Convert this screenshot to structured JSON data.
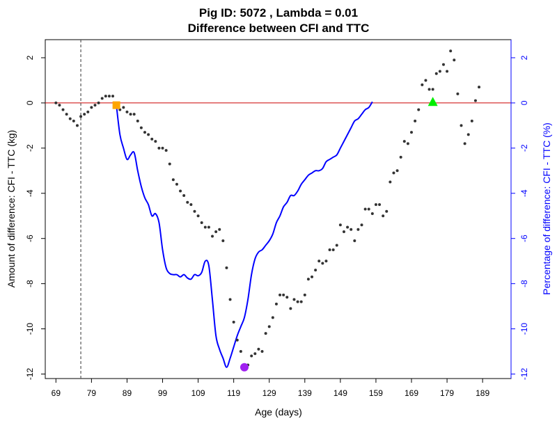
{
  "chart_data": {
    "type": "scatter",
    "title": "Pig ID: 5072 , Lambda = 0.01",
    "subtitle": "Difference between CFI and TTC",
    "xlabel": "Age (days)",
    "ylabel_left": "Amount of difference: CFI - TTC (kg)",
    "ylabel_right": "Percentage of difference: CFI - TTC (%)",
    "xlim": [
      66,
      197
    ],
    "ylim": [
      -12.2,
      2.8
    ],
    "x_ticks": [
      69,
      79,
      89,
      99,
      109,
      119,
      129,
      139,
      149,
      159,
      169,
      179,
      189
    ],
    "y_ticks_left": [
      -12,
      -10,
      -8,
      -6,
      -4,
      -2,
      0,
      2
    ],
    "y_ticks_right": [
      -12,
      -10,
      -8,
      -6,
      -4,
      -2,
      0,
      2
    ],
    "colors": {
      "points": "#333333",
      "line": "#0000ff",
      "zero_line": "#cc0000",
      "vline": "#555555",
      "square_marker": "#ffa500",
      "circle_marker": "#a020f0",
      "triangle_marker": "#00ee00",
      "right_axis": "#0000ff"
    },
    "vline_x": 76,
    "series": [
      {
        "type": "points",
        "values": [
          [
            69,
            0
          ],
          [
            70,
            -0.1
          ],
          [
            71,
            -0.3
          ],
          [
            72,
            -0.5
          ],
          [
            73,
            -0.7
          ],
          [
            74,
            -0.8
          ],
          [
            75,
            -1.0
          ],
          [
            76,
            -0.6
          ],
          [
            77,
            -0.5
          ],
          [
            78,
            -0.4
          ],
          [
            79,
            -0.2
          ],
          [
            80,
            -0.1
          ],
          [
            81,
            0.0
          ],
          [
            82,
            0.2
          ],
          [
            83,
            0.3
          ],
          [
            84,
            0.3
          ],
          [
            85,
            0.3
          ],
          [
            86,
            -0.1
          ],
          [
            87,
            -0.3
          ],
          [
            88,
            -0.2
          ],
          [
            89,
            -0.4
          ],
          [
            90,
            -0.5
          ],
          [
            91,
            -0.5
          ],
          [
            92,
            -0.8
          ],
          [
            93,
            -1.1
          ],
          [
            94,
            -1.3
          ],
          [
            95,
            -1.4
          ],
          [
            96,
            -1.6
          ],
          [
            97,
            -1.7
          ],
          [
            98,
            -2.0
          ],
          [
            99,
            -2.0
          ],
          [
            100,
            -2.1
          ],
          [
            101,
            -2.7
          ],
          [
            102,
            -3.4
          ],
          [
            103,
            -3.6
          ],
          [
            104,
            -3.9
          ],
          [
            105,
            -4.1
          ],
          [
            106,
            -4.4
          ],
          [
            107,
            -4.5
          ],
          [
            108,
            -4.8
          ],
          [
            109,
            -5.0
          ],
          [
            110,
            -5.3
          ],
          [
            111,
            -5.5
          ],
          [
            112,
            -5.5
          ],
          [
            113,
            -5.9
          ],
          [
            114,
            -5.7
          ],
          [
            115,
            -5.6
          ],
          [
            116,
            -6.1
          ],
          [
            117,
            -7.3
          ],
          [
            118,
            -8.7
          ],
          [
            119,
            -9.7
          ],
          [
            120,
            -10.5
          ],
          [
            121,
            -11.0
          ],
          [
            122,
            -11.6
          ],
          [
            123,
            -11.6
          ],
          [
            124,
            -11.2
          ],
          [
            125,
            -11.1
          ],
          [
            126,
            -10.9
          ],
          [
            127,
            -11.0
          ],
          [
            128,
            -10.2
          ],
          [
            129,
            -9.9
          ],
          [
            130,
            -9.5
          ],
          [
            131,
            -8.9
          ],
          [
            132,
            -8.5
          ],
          [
            133,
            -8.5
          ],
          [
            134,
            -8.6
          ],
          [
            135,
            -9.1
          ],
          [
            136,
            -8.7
          ],
          [
            137,
            -8.8
          ],
          [
            138,
            -8.8
          ],
          [
            139,
            -8.5
          ],
          [
            140,
            -7.8
          ],
          [
            141,
            -7.7
          ],
          [
            142,
            -7.4
          ],
          [
            143,
            -7.0
          ],
          [
            144,
            -7.1
          ],
          [
            145,
            -7.0
          ],
          [
            146,
            -6.5
          ],
          [
            147,
            -6.5
          ],
          [
            148,
            -6.3
          ],
          [
            149,
            -5.4
          ],
          [
            150,
            -5.7
          ],
          [
            151,
            -5.5
          ],
          [
            152,
            -5.6
          ],
          [
            153,
            -6.1
          ],
          [
            154,
            -5.6
          ],
          [
            155,
            -5.4
          ],
          [
            156,
            -4.7
          ],
          [
            157,
            -4.7
          ],
          [
            158,
            -4.9
          ],
          [
            159,
            -4.5
          ],
          [
            160,
            -4.5
          ],
          [
            161,
            -5.0
          ],
          [
            162,
            -4.8
          ],
          [
            163,
            -3.5
          ],
          [
            164,
            -3.1
          ],
          [
            165,
            -3.0
          ],
          [
            166,
            -2.4
          ],
          [
            167,
            -1.7
          ],
          [
            168,
            -1.8
          ],
          [
            169,
            -1.3
          ],
          [
            170,
            -0.8
          ],
          [
            171,
            -0.3
          ],
          [
            172,
            0.8
          ],
          [
            173,
            1.0
          ],
          [
            174,
            0.6
          ],
          [
            175,
            0.6
          ],
          [
            176,
            1.3
          ],
          [
            177,
            1.4
          ],
          [
            178,
            1.7
          ],
          [
            179,
            1.4
          ],
          [
            180,
            2.3
          ],
          [
            181,
            1.9
          ],
          [
            182,
            0.4
          ],
          [
            183,
            -1.0
          ],
          [
            184,
            -1.8
          ],
          [
            185,
            -1.4
          ],
          [
            186,
            -0.8
          ],
          [
            187,
            0.1
          ],
          [
            188,
            0.7
          ]
        ]
      },
      {
        "type": "line",
        "values": [
          [
            86,
            -0.1
          ],
          [
            87,
            -1.4
          ],
          [
            88,
            -2.0
          ],
          [
            89,
            -2.5
          ],
          [
            90,
            -2.3
          ],
          [
            91,
            -2.2
          ],
          [
            92,
            -3.0
          ],
          [
            93,
            -3.7
          ],
          [
            94,
            -4.2
          ],
          [
            95,
            -4.5
          ],
          [
            96,
            -5.0
          ],
          [
            97,
            -4.9
          ],
          [
            98,
            -5.3
          ],
          [
            99,
            -6.5
          ],
          [
            100,
            -7.3
          ],
          [
            101,
            -7.55
          ],
          [
            102,
            -7.6
          ],
          [
            103,
            -7.6
          ],
          [
            104,
            -7.7
          ],
          [
            105,
            -7.6
          ],
          [
            106,
            -7.75
          ],
          [
            107,
            -7.8
          ],
          [
            108,
            -7.6
          ],
          [
            109,
            -7.65
          ],
          [
            110,
            -7.5
          ],
          [
            111,
            -7.0
          ],
          [
            112,
            -7.2
          ],
          [
            113,
            -8.7
          ],
          [
            114,
            -10.3
          ],
          [
            115,
            -10.9
          ],
          [
            116,
            -11.3
          ],
          [
            117,
            -11.7
          ],
          [
            118,
            -11.3
          ],
          [
            119,
            -10.8
          ],
          [
            120,
            -10.3
          ],
          [
            121,
            -9.9
          ],
          [
            122,
            -9.5
          ],
          [
            123,
            -8.7
          ],
          [
            124,
            -7.6
          ],
          [
            125,
            -6.9
          ],
          [
            126,
            -6.6
          ],
          [
            127,
            -6.5
          ],
          [
            128,
            -6.3
          ],
          [
            129,
            -6.1
          ],
          [
            130,
            -5.8
          ],
          [
            131,
            -5.3
          ],
          [
            132,
            -5.0
          ],
          [
            133,
            -4.6
          ],
          [
            134,
            -4.4
          ],
          [
            135,
            -4.1
          ],
          [
            136,
            -4.1
          ],
          [
            137,
            -3.9
          ],
          [
            138,
            -3.6
          ],
          [
            139,
            -3.4
          ],
          [
            140,
            -3.2
          ],
          [
            141,
            -3.1
          ],
          [
            142,
            -3.0
          ],
          [
            143,
            -3.0
          ],
          [
            144,
            -2.9
          ],
          [
            145,
            -2.6
          ],
          [
            146,
            -2.5
          ],
          [
            147,
            -2.4
          ],
          [
            148,
            -2.3
          ],
          [
            149,
            -2.0
          ],
          [
            150,
            -1.7
          ],
          [
            151,
            -1.4
          ],
          [
            152,
            -1.1
          ],
          [
            153,
            -0.8
          ],
          [
            154,
            -0.7
          ],
          [
            155,
            -0.5
          ],
          [
            156,
            -0.3
          ],
          [
            157,
            -0.2
          ],
          [
            158,
            0.05
          ]
        ]
      }
    ],
    "markers": [
      {
        "shape": "square",
        "x": 86,
        "y": -0.1
      },
      {
        "shape": "circle",
        "x": 122,
        "y": -11.7
      },
      {
        "shape": "triangle",
        "x": 175,
        "y": 0.05
      }
    ]
  }
}
